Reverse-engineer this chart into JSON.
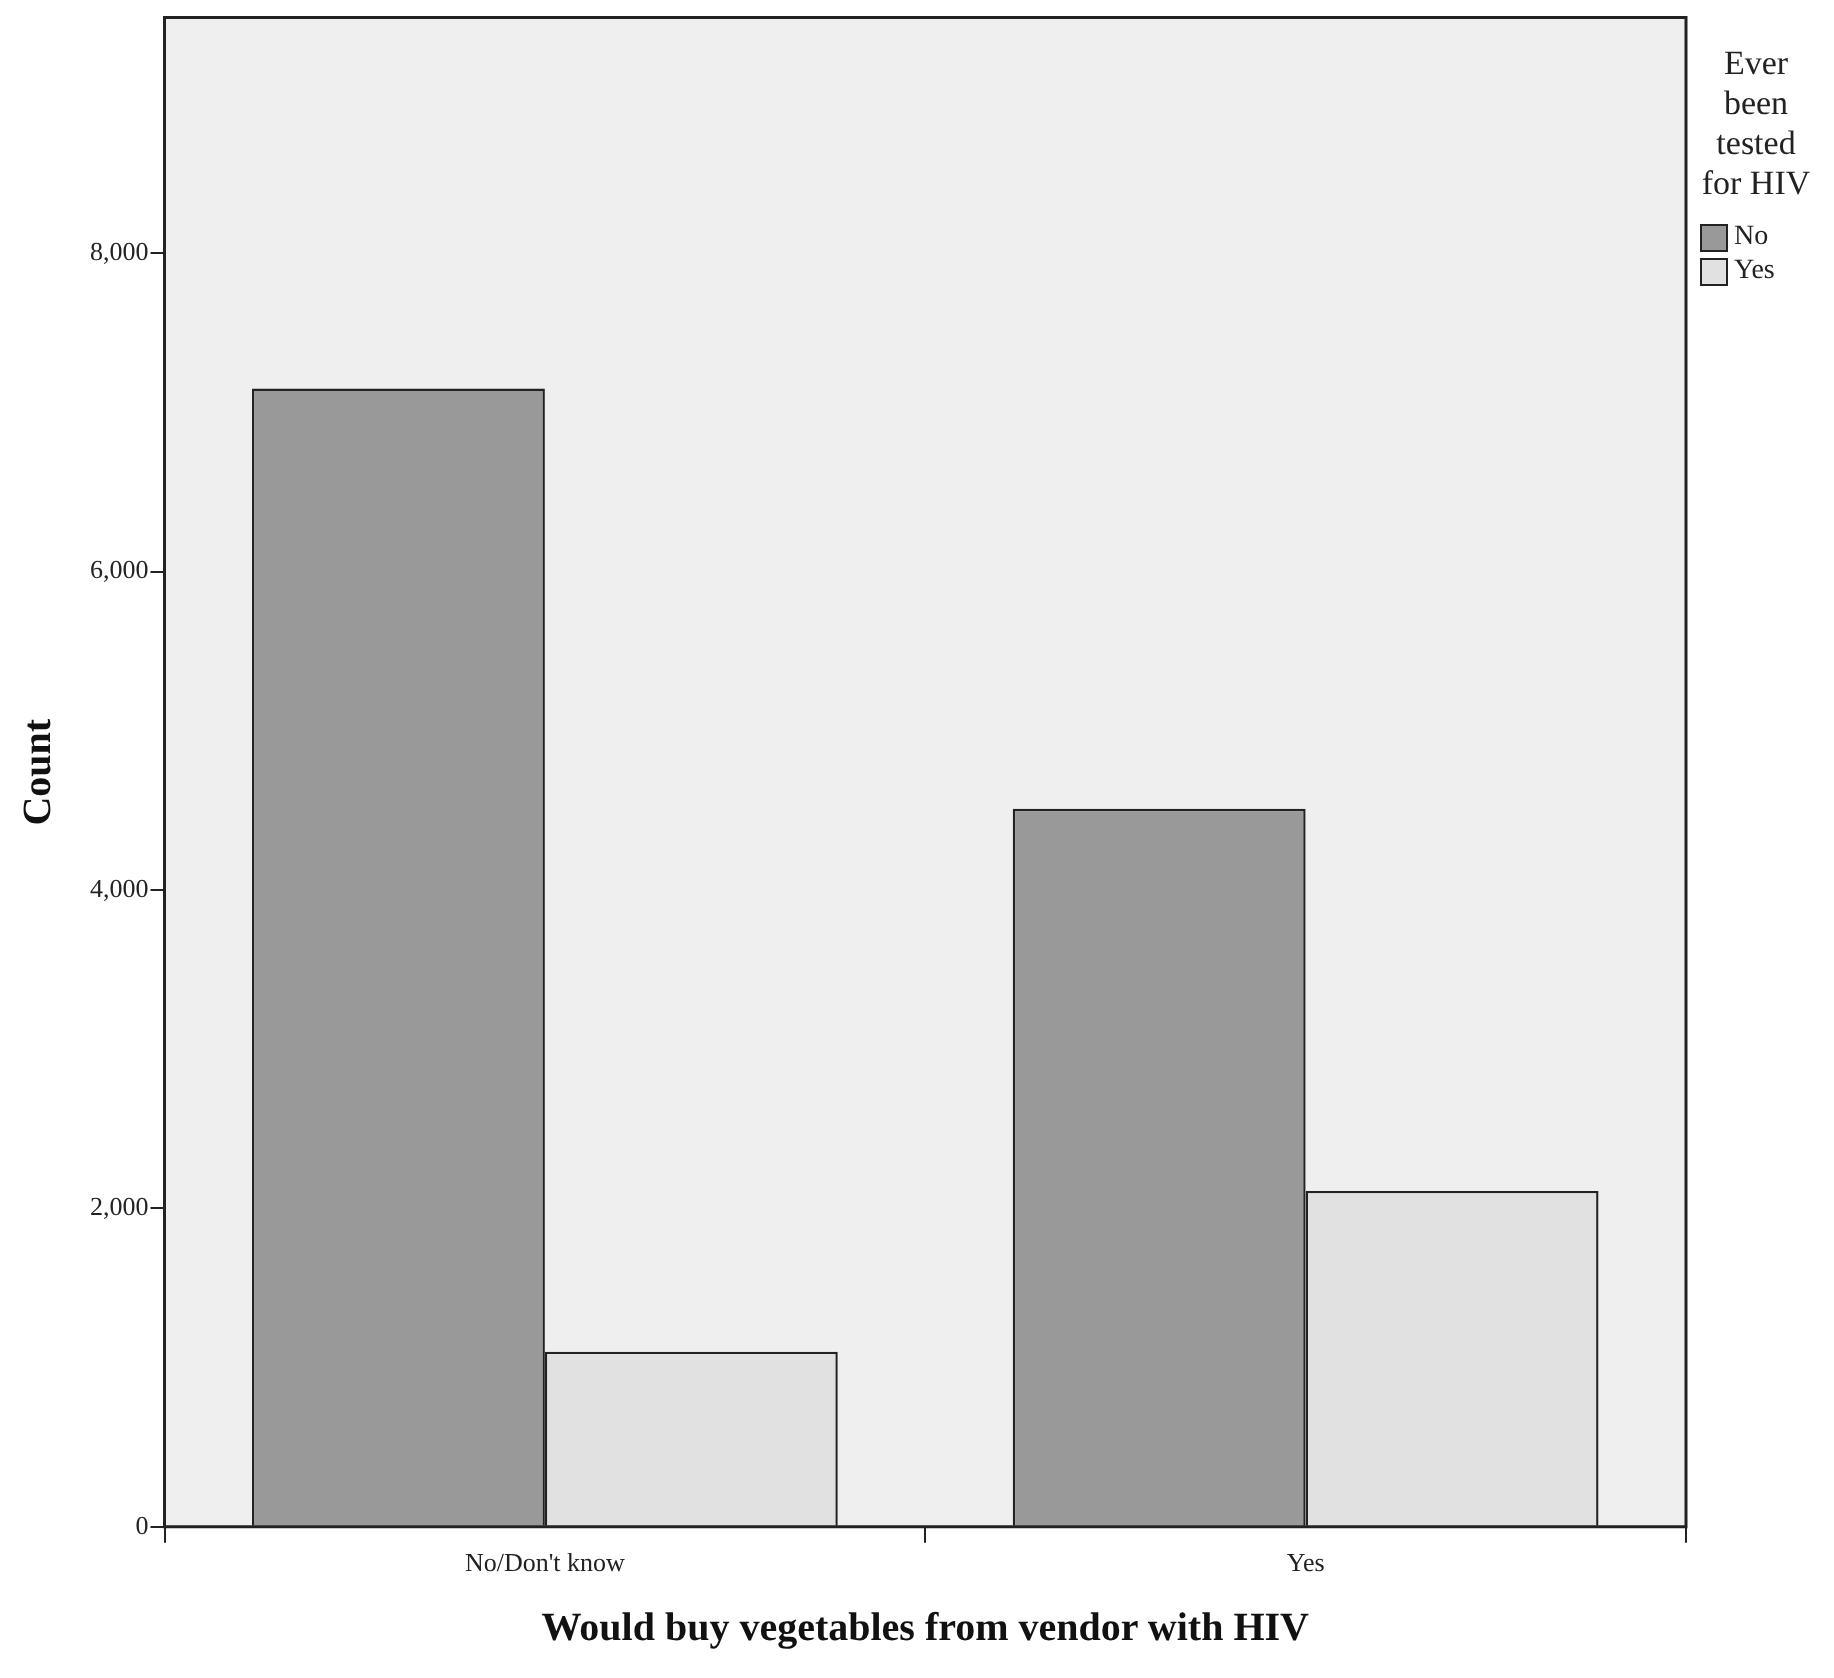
{
  "chart_data": {
    "type": "bar",
    "xlabel": "Would buy vegetables from vendor with HIV",
    "ylabel": "Count",
    "legend_title": "Ever been tested for HIV",
    "categories": [
      "No/Don't know",
      "Yes"
    ],
    "series": [
      {
        "name": "No",
        "color": "#999999",
        "values": [
          7150,
          4510
        ]
      },
      {
        "name": "Yes",
        "color": "#e1e1e1",
        "values": [
          1100,
          2110
        ]
      }
    ],
    "ylim": [
      0,
      9480
    ],
    "yticks": [
      0,
      {
        "value": 2000,
        "label": "2,000"
      },
      {
        "value": 4000,
        "label": "4,000"
      },
      {
        "value": 6000,
        "label": "6,000"
      },
      {
        "value": 8000,
        "label": "8,000"
      }
    ],
    "grid": false,
    "legend": "right"
  }
}
